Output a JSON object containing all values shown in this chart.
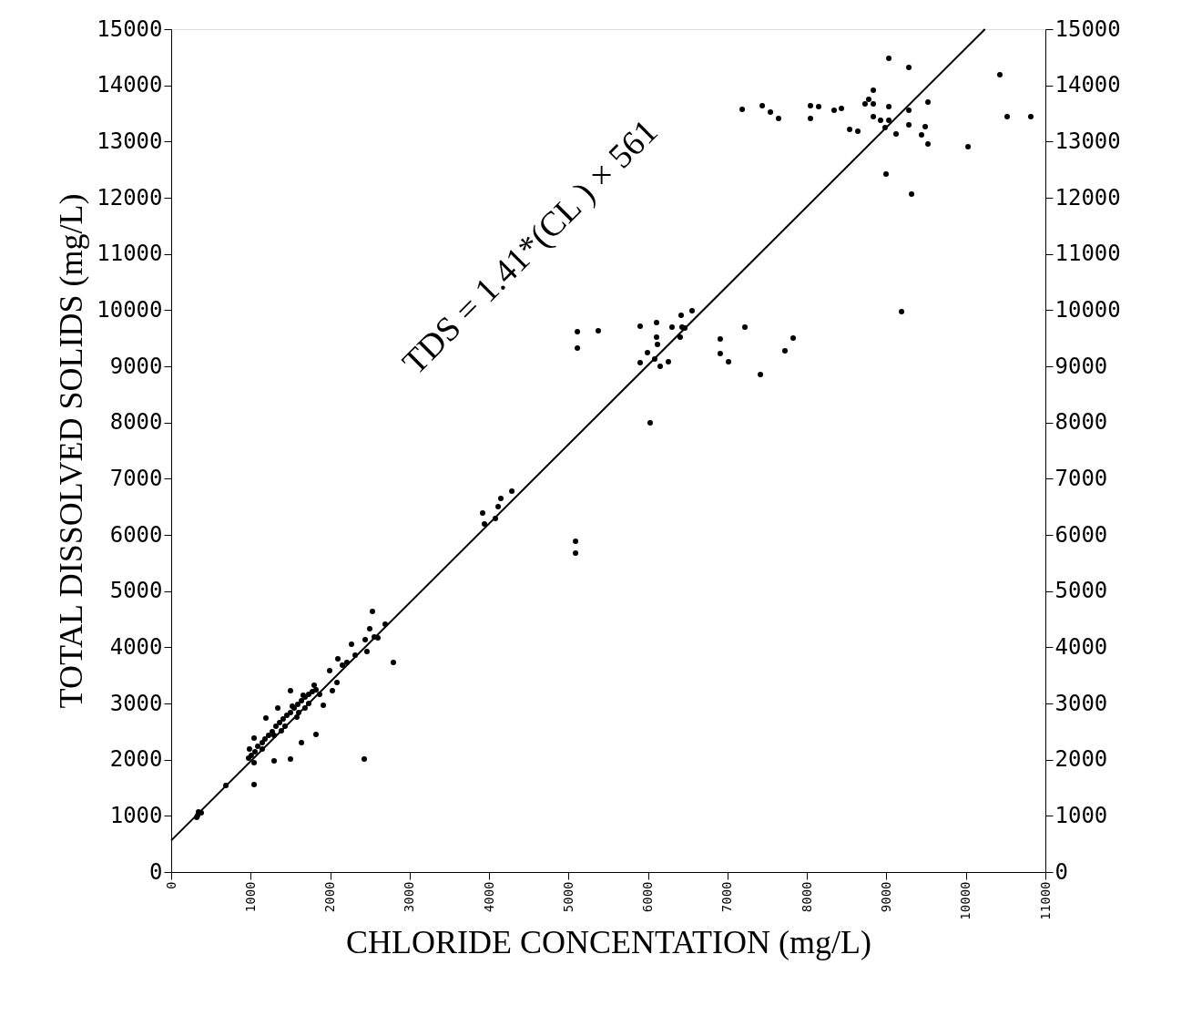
{
  "chart_data": {
    "type": "scatter",
    "xlabel": "CHLORIDE CONCENTATION (mg/L)",
    "ylabel": "TOTAL DISSOLVED SOLIDS (mg/L)",
    "xlim": [
      0,
      11000
    ],
    "xticks": [
      0,
      1000,
      2000,
      3000,
      4000,
      5000,
      6000,
      7000,
      8000,
      9000,
      10000,
      11000
    ],
    "ylim": [
      0,
      15000
    ],
    "yticks": [
      0,
      1000,
      2000,
      3000,
      4000,
      5000,
      6000,
      7000,
      8000,
      9000,
      10000,
      11000,
      12000,
      13000,
      14000,
      15000
    ],
    "y2lim": [
      0,
      15000
    ],
    "y2ticks": [
      0,
      1000,
      2000,
      3000,
      4000,
      5000,
      6000,
      7000,
      8000,
      9000,
      10000,
      11000,
      12000,
      13000,
      14000,
      15000
    ],
    "grid": false,
    "annotations": [
      "TDS = 1.41*(CL ) × 561"
    ],
    "series": [
      {
        "marker": "circle",
        "color": "#000000",
        "x": [
          7185,
          7437,
          7540,
          7643,
          8044,
          8044,
          8147,
          8342,
          8434,
          8537,
          8640,
          8731,
          8777,
          8835,
          8835,
          8835,
          8926,
          8983,
          9030,
          9030,
          8995,
          9282,
          9282,
          9282,
          9121,
          9316,
          9522,
          9488,
          9442,
          9522,
          10027,
          10427,
          10519,
          10817,
          9030,
          9190,
          5111,
          5111,
          5374,
          5901,
          6107,
          6302,
          6417,
          6554,
          6428,
          6463,
          6107,
          6119,
          6405,
          5993,
          6084,
          5901,
          6153,
          6256,
          6909,
          6909,
          7013,
          7219,
          7414,
          7723,
          7826,
          6027,
          3919,
          3942,
          4114,
          4148,
          4286,
          4079,
          5088,
          5088,
          2532,
          2269,
          2097,
          1994,
          2796,
          2429,
          1914,
          1822,
          1639,
          1501,
          1295,
          1043,
          985,
          1192,
          1341,
          1501,
          2086,
          2028,
          1043,
          332,
          688,
          974,
          1008,
          1054,
          1089,
          1146,
          1180,
          1226,
          1272,
          1318,
          1364,
          1409,
          1455,
          1501,
          1547,
          1593,
          1639,
          1684,
          1730,
          1776,
          1822,
          1043,
          1295,
          1432,
          1604,
          1730,
          1524,
          1661,
          1799,
          1868,
          1581,
          1386,
          1146,
          1684,
          2441,
          2498,
          2555,
          2463,
          2693,
          2315,
          2211,
          2154,
          2601,
          344,
          378,
          321
        ],
        "values": [
          13573,
          13638,
          13524,
          13410,
          13638,
          13410,
          13621,
          13556,
          13589,
          13216,
          13183,
          13670,
          13751,
          13913,
          13670,
          13443,
          13378,
          13248,
          13621,
          13378,
          12421,
          14318,
          13556,
          13297,
          13135,
          12065,
          13702,
          13264,
          13118,
          12956,
          12908,
          14188,
          13443,
          13443,
          14480,
          9973,
          9616,
          9324,
          9632,
          9713,
          9778,
          9697,
          9908,
          9989,
          9697,
          9681,
          9519,
          9389,
          9519,
          9243,
          9130,
          9065,
          9000,
          9081,
          9486,
          9227,
          9081,
          9697,
          8854,
          9276,
          9502,
          7994,
          6389,
          6195,
          6503,
          6648,
          6778,
          6292,
          5886,
          5675,
          4638,
          4054,
          3795,
          3584,
          3730,
          2011,
          2967,
          2449,
          2303,
          2011,
          1978,
          1557,
          2189,
          2740,
          2919,
          3227,
          3373,
          3227,
          2384,
          1005,
          1540,
          2027,
          2076,
          2141,
          2238,
          2303,
          2368,
          2432,
          2497,
          2595,
          2659,
          2724,
          2789,
          2838,
          2919,
          2984,
          3049,
          3113,
          3162,
          3211,
          3243,
          1946,
          2432,
          2595,
          2838,
          3000,
          2951,
          3146,
          3324,
          3162,
          2757,
          2514,
          2189,
          2919,
          4135,
          4330,
          4184,
          3924,
          4411,
          3859,
          3730,
          3681,
          4168,
          1070,
          1054,
          973
        ]
      },
      {
        "type": "line",
        "marker": "none",
        "line_style": "solid",
        "color": "#000000",
        "x": [
          0,
          10240
        ],
        "values": [
          561,
          15000
        ]
      }
    ]
  }
}
